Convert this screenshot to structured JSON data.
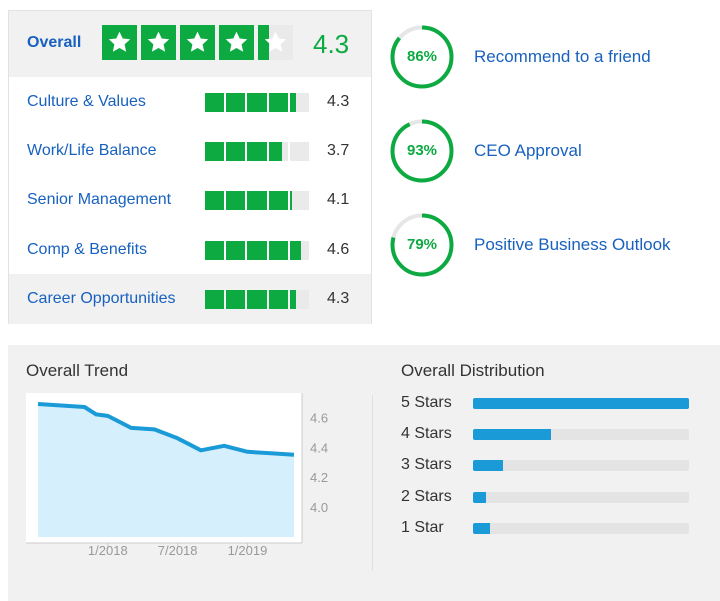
{
  "overall": {
    "label": "Overall",
    "rating": "4.3",
    "rating_value": 4.3,
    "star_color": "#0caa41"
  },
  "categories": [
    {
      "label": "Culture & Values",
      "value": "4.3",
      "rating_value": 4.3
    },
    {
      "label": "Work/Life Balance",
      "value": "3.7",
      "rating_value": 3.7
    },
    {
      "label": "Senior Management",
      "value": "4.1",
      "rating_value": 4.1
    },
    {
      "label": "Comp & Benefits",
      "value": "4.6",
      "rating_value": 4.6
    },
    {
      "label": "Career Opportunities",
      "value": "4.3",
      "rating_value": 4.3
    }
  ],
  "approvals": [
    {
      "percent": "86%",
      "fraction": 0.86,
      "label": "Recommend to a friend"
    },
    {
      "percent": "93%",
      "fraction": 0.93,
      "label": "CEO Approval"
    },
    {
      "percent": "79%",
      "fraction": 0.79,
      "label": "Positive Business Outlook"
    }
  ],
  "trend": {
    "title": "Overall Trend"
  },
  "distribution": {
    "title": "Overall Distribution",
    "rows": [
      {
        "label": "5 Stars",
        "fraction": 1.0
      },
      {
        "label": "4 Stars",
        "fraction": 0.36
      },
      {
        "label": "3 Stars",
        "fraction": 0.14
      },
      {
        "label": "2 Stars",
        "fraction": 0.06
      },
      {
        "label": "1 Star",
        "fraction": 0.08
      }
    ]
  },
  "colors": {
    "green": "#0caa41",
    "blue_link": "#1861bf",
    "dist_blue": "#1a9bd7",
    "trend_fill": "#d6effc"
  },
  "chart_data": {
    "type": "area",
    "title": "Overall Trend",
    "x": [
      "2017-07",
      "2017-09",
      "2017-11",
      "2017-12",
      "2018-01",
      "2018-03",
      "2018-05",
      "2018-07",
      "2018-09",
      "2018-11",
      "2019-01",
      "2019-03",
      "2019-05"
    ],
    "series": [
      {
        "values": [
          4.69,
          4.68,
          4.67,
          4.62,
          4.61,
          4.53,
          4.52,
          4.46,
          4.38,
          4.41,
          4.37,
          4.36,
          4.35
        ]
      }
    ],
    "x_ticks": [
      "1/2018",
      "7/2018",
      "1/2019"
    ],
    "y_ticks": [
      "4.6",
      "4.4",
      "4.2",
      "4.0"
    ],
    "ylim": [
      3.8,
      4.75
    ],
    "grid": false
  }
}
